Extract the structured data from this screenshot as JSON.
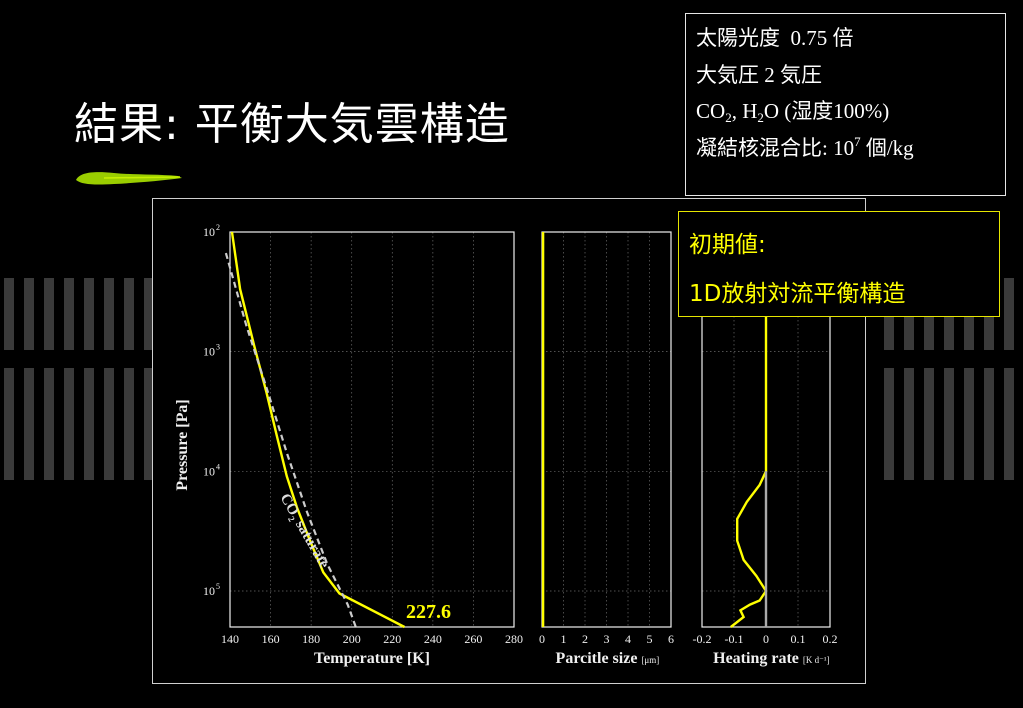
{
  "slide": {
    "title": "結果: 平衡大気雲構造",
    "accent_color": "#9acd00"
  },
  "info_box": {
    "line1": {
      "label": "太陽光度",
      "value": "0.75 倍"
    },
    "line2": {
      "label": "大気圧",
      "value": "2 気圧"
    },
    "line3": {
      "co": "CO",
      "co_sub": "2",
      "sep": ", H",
      "h_sub": "2",
      "rest": "O (湿度100%)"
    },
    "line4": {
      "label": "凝結核混合比: 10",
      "exp": "7",
      "unit": " 個/kg"
    }
  },
  "initial_box": {
    "line1": "初期値:",
    "line2": "1D放射対流平衡構造"
  },
  "chart_data": [
    {
      "type": "line",
      "xlabel": "Temperature [K]",
      "ylabel": "Pressure [Pa]",
      "xlim": [
        140,
        280
      ],
      "ylim": [
        100,
        200000
      ],
      "yscale": "log",
      "xticks": [
        "140",
        "160",
        "180",
        "200",
        "220",
        "240",
        "260",
        "280"
      ],
      "yticks": [
        {
          "base": "10",
          "exp": "2"
        },
        {
          "base": "10",
          "exp": "3"
        },
        {
          "base": "10",
          "exp": "4"
        },
        {
          "base": "10",
          "exp": "5"
        }
      ],
      "grid": true,
      "series": [
        {
          "color": "#ffff00",
          "style": "solid",
          "x": [
            141,
            145,
            152,
            158,
            163,
            168,
            173,
            180,
            186,
            194,
            226
          ],
          "y": [
            100,
            300,
            900,
            2200,
            5000,
            11000,
            20000,
            40000,
            70000,
            105000,
            200000
          ]
        },
        {
          "name": "CO2 saturate",
          "color": "#cccccc",
          "style": "dashed",
          "x": [
            138,
            148,
            158,
            168,
            178,
            188,
            198,
            202
          ],
          "y": [
            150,
            600,
            2000,
            7000,
            22000,
            60000,
            130000,
            200000
          ]
        }
      ],
      "annotations": [
        {
          "text": "227.6",
          "color": "#ffff00"
        },
        {
          "text": "CO",
          "sub": "2",
          "rest": " saturate",
          "color": "#dddddd"
        }
      ]
    },
    {
      "type": "line",
      "xlabel": "Parcitle size",
      "xunit": "[μm]",
      "xlim": [
        0,
        6
      ],
      "xticks": [
        "0",
        "1",
        "2",
        "3",
        "4",
        "5",
        "6"
      ],
      "grid": true,
      "series": [
        {
          "color": "#ffff00",
          "style": "solid",
          "x": [
            0.05,
            0.05
          ],
          "y": [
            100,
            200000
          ]
        }
      ]
    },
    {
      "type": "line",
      "xlabel": "Heating rate",
      "xunit": "[K d⁻¹]",
      "xlim": [
        -0.2,
        0.2
      ],
      "xticks": [
        "-0.2",
        "-0.1",
        "0",
        "0.1",
        "0.2"
      ],
      "grid": true,
      "series": [
        {
          "color": "#ffff00",
          "style": "solid",
          "x": [
            0,
            0,
            -0.02,
            -0.06,
            -0.09,
            -0.09,
            -0.07,
            -0.03,
            0,
            -0.02,
            -0.05,
            -0.08,
            -0.07,
            -0.11
          ],
          "y": [
            100,
            10000,
            13000,
            18000,
            25000,
            38000,
            55000,
            75000,
            100000,
            120000,
            130000,
            145000,
            165000,
            200000
          ]
        },
        {
          "color": "#aaaaaa",
          "style": "solid",
          "x": [
            0,
            0
          ],
          "y": [
            10000,
            200000
          ]
        }
      ]
    }
  ]
}
